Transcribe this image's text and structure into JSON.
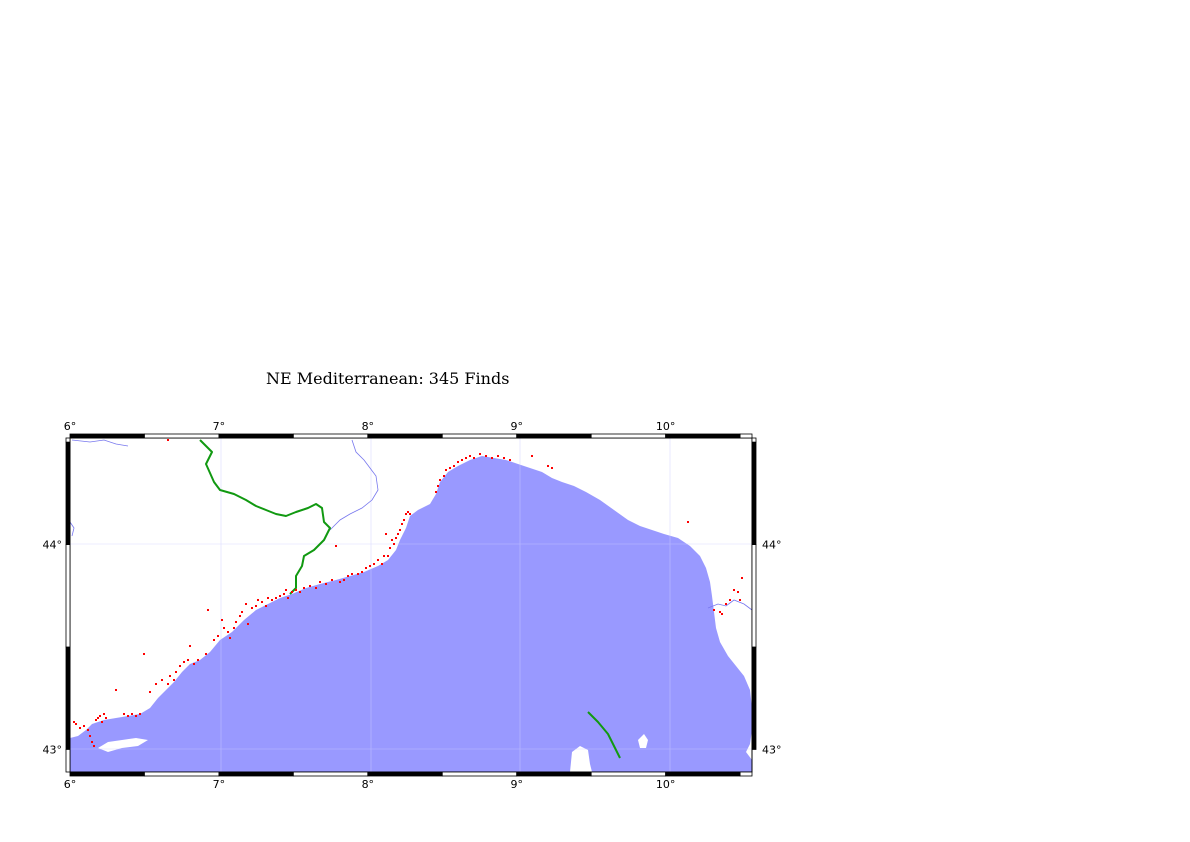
{
  "map": {
    "title": "NE Mediterranean: 345 Finds",
    "lon_ticks": [
      {
        "value": 6,
        "label": "6°"
      },
      {
        "value": 7,
        "label": "7°"
      },
      {
        "value": 8,
        "label": "8°"
      },
      {
        "value": 9,
        "label": "9°"
      },
      {
        "value": 10,
        "label": "10°"
      }
    ],
    "lat_ticks": [
      {
        "value": 43,
        "label": "43°"
      },
      {
        "value": 44,
        "label": "44°"
      }
    ],
    "lon_range": [
      6,
      10.58
    ],
    "lat_range": [
      42.89,
      44.52
    ],
    "colors": {
      "sea": "#9999ff",
      "land": "#ffffff",
      "rivers": "#7777ee",
      "borders": "#119911",
      "finds": "#ff0000"
    },
    "layers": [
      "sea",
      "rivers",
      "national-borders",
      "find-points"
    ]
  }
}
